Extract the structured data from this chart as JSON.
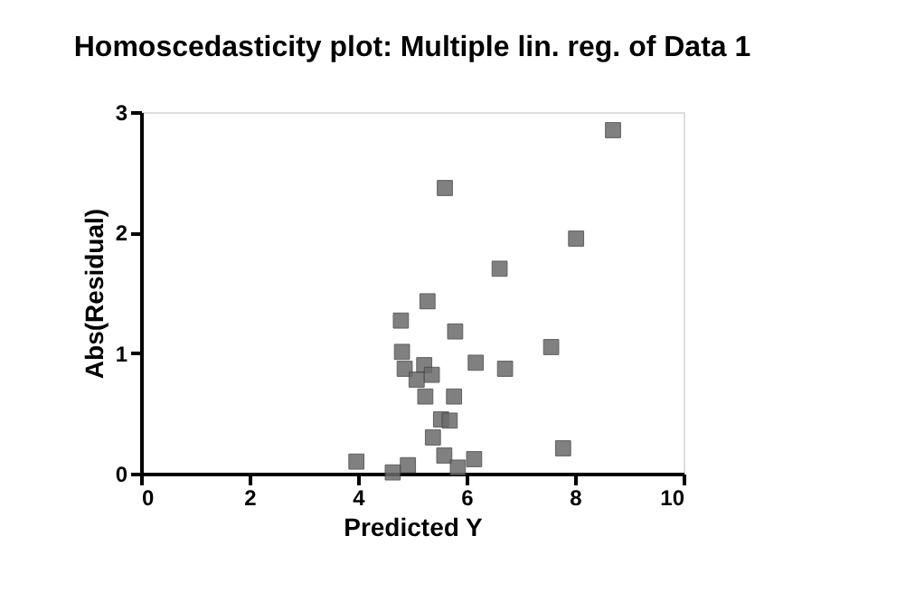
{
  "chart_data": {
    "type": "scatter",
    "title": "Homoscedasticity plot: Multiple lin. reg. of Data 1",
    "xlabel": "Predicted Y",
    "ylabel": "Abs(Residual)",
    "x": [
      5.6,
      8.02,
      6.61,
      5.28,
      4.79,
      5.79,
      4.81,
      7.56,
      4.86,
      5.22,
      5.08,
      5.36,
      6.17,
      6.71,
      5.24,
      5.77,
      5.53,
      5.69,
      5.38,
      5.59,
      6.14,
      7.78,
      3.97,
      4.92,
      4.64,
      5.84,
      8.7
    ],
    "series": [
      {
        "color": "#6b6b6b",
        "values": [
          2.37,
          1.95,
          1.7,
          1.43,
          1.27,
          1.18,
          1.01,
          1.05,
          0.87,
          0.9,
          0.78,
          0.82,
          0.92,
          0.87,
          0.64,
          0.64,
          0.45,
          0.44,
          0.3,
          0.15,
          0.12,
          0.21,
          0.1,
          0.07,
          0.01,
          0.05,
          2.85
        ]
      }
    ],
    "xlim": [
      0,
      10
    ],
    "xticks": [
      0,
      2,
      4,
      6,
      8,
      10
    ],
    "ylim": [
      0,
      3
    ],
    "yticks": [
      0,
      1,
      2,
      3
    ],
    "marker": "square",
    "grid": false,
    "legend": false
  }
}
